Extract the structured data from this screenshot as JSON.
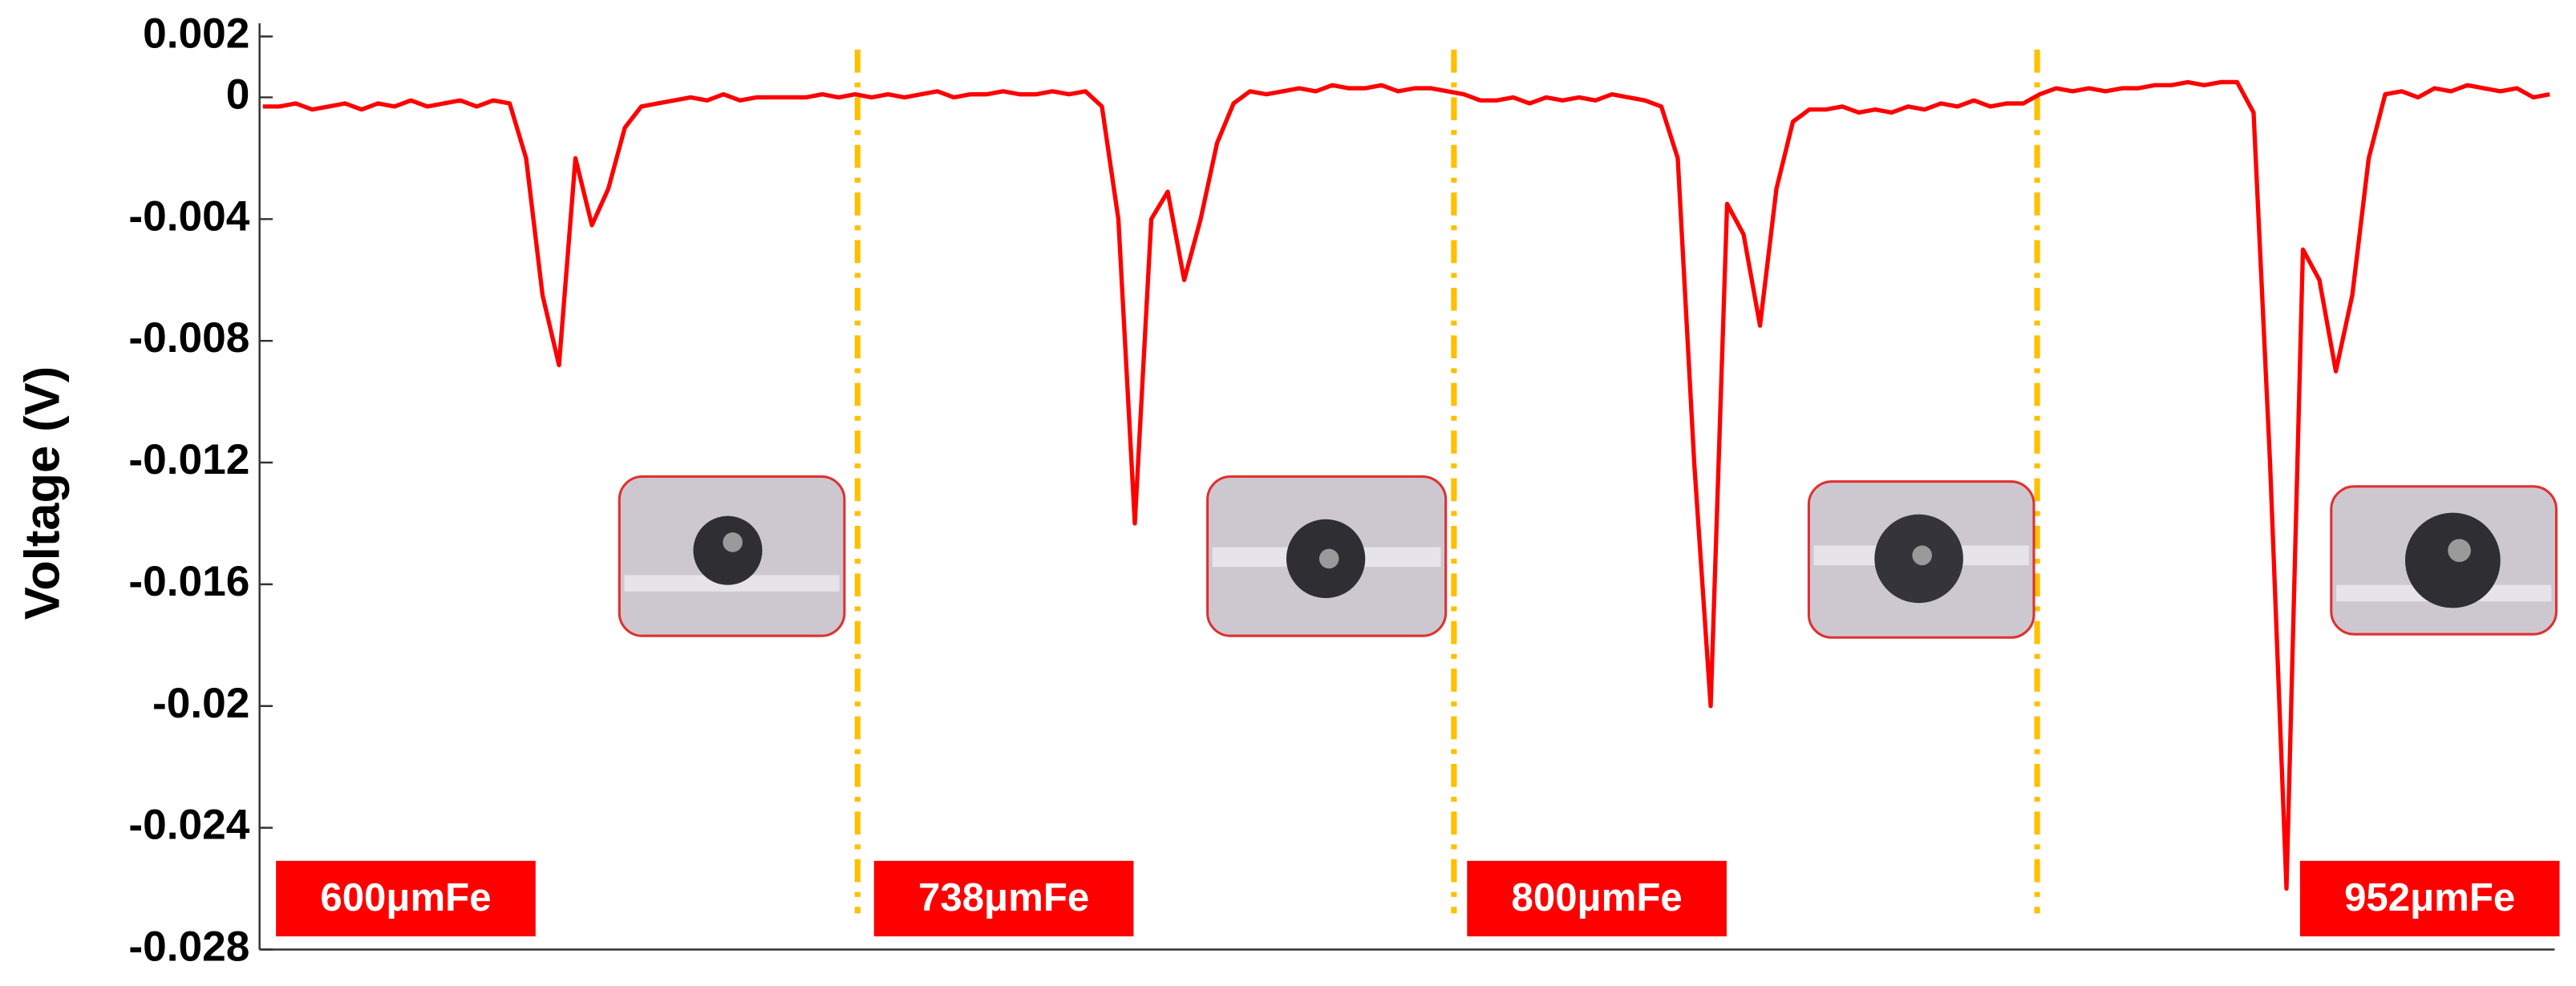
{
  "chart_data": {
    "type": "line",
    "y_label": "Voltage (V)",
    "ylim": [
      -0.028,
      0.002
    ],
    "yticks": [
      0.002,
      0,
      -0.004,
      -0.008,
      -0.012,
      -0.016,
      -0.02,
      -0.024,
      -0.028
    ],
    "series": [
      {
        "name": "Voltage",
        "color": "#ff0000",
        "values": [
          -0.0003,
          -0.0003,
          -0.0002,
          -0.0004,
          -0.0003,
          -0.0002,
          -0.0004,
          -0.0002,
          -0.0003,
          -0.0001,
          -0.0003,
          -0.0002,
          -0.0001,
          -0.0003,
          -0.0001,
          -0.0002,
          -0.002,
          -0.0065,
          -0.0088,
          -0.002,
          -0.0042,
          -0.003,
          -0.001,
          -0.0003,
          -0.0002,
          -0.0001,
          0,
          -0.0001,
          0.0001,
          -0.0001,
          0,
          0,
          0,
          0,
          0.0001,
          0,
          0.0001,
          0,
          0.0001,
          0,
          0.0001,
          0.0002,
          0,
          0.0001,
          0.0001,
          0.0002,
          0.0001,
          0.0001,
          0.0002,
          0.0001,
          0.0002,
          -0.0003,
          -0.004,
          -0.014,
          -0.004,
          -0.0031,
          -0.006,
          -0.004,
          -0.0015,
          -0.0002,
          0.0002,
          0.0001,
          0.0002,
          0.0003,
          0.0002,
          0.0004,
          0.0003,
          0.0003,
          0.0004,
          0.0002,
          0.0003,
          0.0003,
          0.0002,
          0.0001,
          -0.0001,
          -0.0001,
          0,
          -0.0002,
          0,
          -0.0001,
          0,
          -0.0001,
          0.0001,
          0,
          -0.0001,
          -0.0003,
          -0.002,
          -0.012,
          -0.02,
          -0.0035,
          -0.0045,
          -0.0075,
          -0.003,
          -0.0008,
          -0.0004,
          -0.0004,
          -0.0003,
          -0.0005,
          -0.0004,
          -0.0005,
          -0.0003,
          -0.0004,
          -0.0002,
          -0.0003,
          -0.0001,
          -0.0003,
          -0.0002,
          -0.0002,
          0.0001,
          0.0003,
          0.0002,
          0.0003,
          0.0002,
          0.0003,
          0.0003,
          0.0004,
          0.0004,
          0.0005,
          0.0004,
          0.0005,
          0.0005,
          -0.0005,
          -0.012,
          -0.026,
          -0.005,
          -0.006,
          -0.009,
          -0.0065,
          -0.002,
          0.0001,
          0.0002,
          0,
          0.0003,
          0.0002,
          0.0004,
          0.0003,
          0.0002,
          0.0003,
          0,
          0.0001
        ]
      }
    ],
    "annotations": [
      "600μmFe",
      "738μmFe",
      "800μmFe",
      "952μmFe"
    ],
    "separator_color": "#ffc000"
  }
}
